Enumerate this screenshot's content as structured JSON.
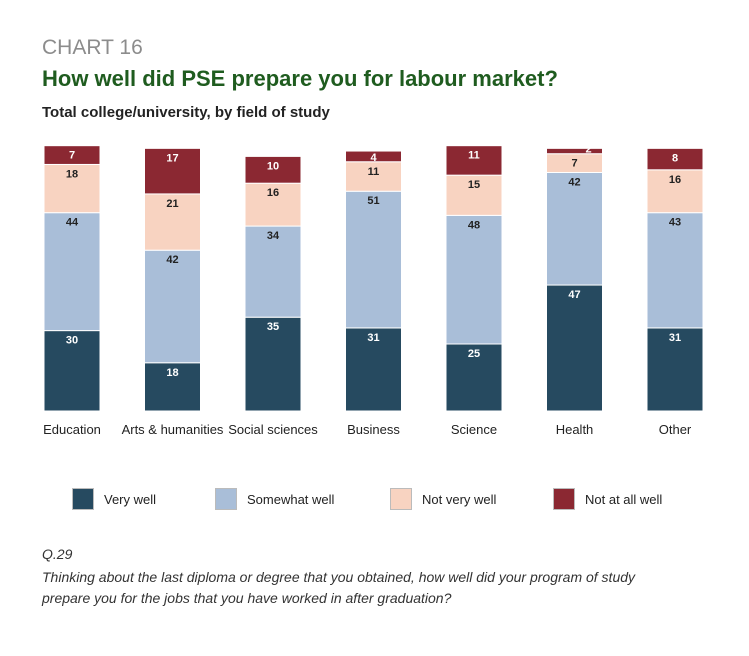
{
  "header": {
    "chart_number": "CHART 16",
    "title": "How well did PSE prepare you for labour market?",
    "subtitle": "Total college/university, by field of study"
  },
  "chart_data": {
    "type": "bar",
    "stacked": true,
    "categories": [
      "Education",
      "Arts & humanities",
      "Social sciences",
      "Business",
      "Science",
      "Health",
      "Other"
    ],
    "series": [
      {
        "name": "Very well",
        "color": "#264a60",
        "label_color": "#ffffff",
        "values": [
          30,
          18,
          35,
          31,
          25,
          47,
          31
        ]
      },
      {
        "name": "Somewhat well",
        "color": "#a9bed8",
        "label_color": "#222222",
        "values": [
          44,
          42,
          34,
          51,
          48,
          42,
          43
        ]
      },
      {
        "name": "Not very well",
        "color": "#f8d3c1",
        "label_color": "#222222",
        "values": [
          18,
          21,
          16,
          11,
          15,
          7,
          16
        ]
      },
      {
        "name": "Not at all well",
        "color": "#8b2832",
        "label_color": "#ffffff",
        "values": [
          7,
          17,
          10,
          4,
          11,
          2,
          8
        ]
      }
    ],
    "title": "How well did PSE prepare you for labour market?",
    "ylim": [
      0,
      100
    ],
    "legend_position": "bottom"
  },
  "legend": {
    "items": [
      "Very well",
      "Somewhat well",
      "Not very well",
      "Not at all well"
    ]
  },
  "footnote": {
    "question_number": "Q.29",
    "question_text": "Thinking about the last diploma or degree that you obtained, how well did your program of study prepare you for the jobs that you have worked in after graduation?"
  }
}
